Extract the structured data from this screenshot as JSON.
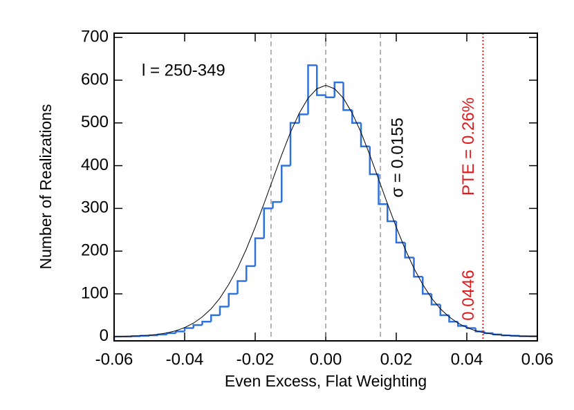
{
  "chart_data": {
    "type": "histogram",
    "xlabel": "Even Excess, Flat Weighting",
    "ylabel": "Number of Realizations",
    "annotation": "l = 250-349",
    "sigma_label": "σ = 0.0155",
    "pte_label": "PTE = 0.26%",
    "xlim": [
      -0.06,
      0.06
    ],
    "ylim": [
      -10,
      710
    ],
    "xticks": [
      -0.06,
      -0.04,
      -0.02,
      {
        "value": 0,
        "label": "0.00"
      },
      0.02,
      0.04,
      0.06
    ],
    "yticks": [
      0,
      100,
      200,
      300,
      400,
      500,
      600,
      700
    ],
    "color": "#2f72dc",
    "bins": [
      -0.06,
      -0.0575,
      -0.055,
      -0.0525,
      -0.05,
      -0.0475,
      -0.045,
      -0.0425,
      -0.04,
      -0.0375,
      -0.035,
      -0.0325,
      -0.03,
      -0.0275,
      -0.025,
      -0.0225,
      -0.02,
      -0.0175,
      -0.015,
      -0.0125,
      -0.01,
      -0.0075,
      -0.005,
      -0.0025,
      0,
      0.0025,
      0.005,
      0.0075,
      0.01,
      0.0125,
      0.015,
      0.0175,
      0.02,
      0.0225,
      0.025,
      0.0275,
      0.03,
      0.0325,
      0.035,
      0.0375,
      0.04,
      0.0425,
      0.045,
      0.0475,
      0.05,
      0.0525,
      0.055,
      0.0575,
      0.06
    ],
    "values": [
      0,
      0,
      1,
      2,
      3,
      5,
      8,
      12,
      20,
      27,
      35,
      50,
      70,
      100,
      130,
      165,
      230,
      300,
      315,
      400,
      500,
      520,
      635,
      565,
      560,
      595,
      530,
      500,
      445,
      380,
      310,
      270,
      220,
      185,
      140,
      100,
      75,
      50,
      35,
      25,
      20,
      12,
      8,
      5,
      3,
      2,
      1,
      1
    ],
    "fit": {
      "color": "#000000",
      "x": [
        -0.06,
        -0.0575,
        -0.055,
        -0.0525,
        -0.05,
        -0.0475,
        -0.045,
        -0.0425,
        -0.04,
        -0.0375,
        -0.035,
        -0.0325,
        -0.03,
        -0.0275,
        -0.025,
        -0.0225,
        -0.02,
        -0.0175,
        -0.015,
        -0.0125,
        -0.01,
        -0.0075,
        -0.005,
        -0.0025,
        0,
        0.0025,
        0.005,
        0.0075,
        0.01,
        0.0125,
        0.015,
        0.0175,
        0.02,
        0.0225,
        0.025,
        0.0275,
        0.03,
        0.0325,
        0.035,
        0.0375,
        0.04,
        0.0425,
        0.045,
        0.0475,
        0.05,
        0.0525,
        0.055,
        0.0575,
        0.06
      ],
      "y": [
        0.3,
        0.6,
        1.1,
        1.9,
        3.2,
        5.3,
        8.7,
        13.7,
        21,
        31.5,
        46,
        65,
        90,
        122,
        160,
        205,
        256,
        311,
        368,
        425,
        478,
        523,
        558,
        580,
        588,
        580,
        558,
        523,
        478,
        425,
        368,
        311,
        256,
        205,
        160,
        122,
        90,
        65,
        46,
        31.5,
        21,
        13.7,
        8.7,
        5.3,
        3.2,
        1.9,
        1.1,
        0.6,
        0.3
      ]
    },
    "sigma_lines": [
      -0.0155,
      0,
      0.0155
    ],
    "sigma_line_color": "#666666",
    "threshold": 0.0446,
    "threshold_color": "#e3191c"
  }
}
